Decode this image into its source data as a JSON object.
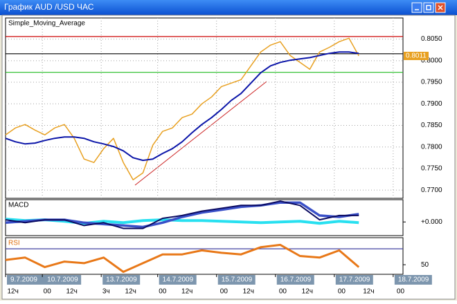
{
  "window": {
    "title": "График AUD /USD  ЧАС"
  },
  "chart_data": [
    {
      "type": "line",
      "title": "Simple_Moving_Average",
      "title_color": "#000000",
      "grid": true,
      "xlim": [
        0,
        162
      ],
      "ylim": [
        0.7681,
        0.8099
      ],
      "yticks": [
        {
          "value": 0.77,
          "label": "0.7700"
        },
        {
          "value": 0.775,
          "label": "0.7750"
        },
        {
          "value": 0.78,
          "label": "0.7800"
        },
        {
          "value": 0.785,
          "label": "0.7850"
        },
        {
          "value": 0.79,
          "label": "0.7900"
        },
        {
          "value": 0.795,
          "label": "0.7950"
        },
        {
          "value": 0.8,
          "label": "0.8000"
        },
        {
          "value": 0.805,
          "label": "0.8050"
        }
      ],
      "hlines": [
        {
          "value": 0.8056,
          "color": "#cc0000"
        },
        {
          "value": 0.8016,
          "color": "#000000"
        },
        {
          "value": 0.7973,
          "color": "#22bb22"
        }
      ],
      "x": [
        0,
        4,
        8,
        12,
        16,
        20,
        24,
        28,
        32,
        36,
        40,
        44,
        48,
        52,
        56,
        60,
        64,
        68,
        72,
        76,
        80,
        84,
        88,
        92,
        96,
        100,
        104,
        108,
        112,
        116,
        120,
        124,
        128,
        132,
        136,
        140,
        144
      ],
      "series": [
        {
          "color": "#e8a020",
          "width": 1.5,
          "last_label": true,
          "values": [
            0.7828,
            0.7844,
            0.7852,
            0.7839,
            0.7828,
            0.7844,
            0.7852,
            0.782,
            0.7772,
            0.7764,
            0.7796,
            0.782,
            0.7764,
            0.7724,
            0.774,
            0.7804,
            0.7836,
            0.7844,
            0.7868,
            0.7876,
            0.79,
            0.7916,
            0.794,
            0.7948,
            0.7956,
            0.7988,
            0.802,
            0.8036,
            0.8044,
            0.8012,
            0.7996,
            0.798,
            0.802,
            0.8031,
            0.8044,
            0.8052,
            0.8011
          ]
        },
        {
          "color": "#0a14a8",
          "width": 2,
          "values": [
            0.782,
            0.7812,
            0.7807,
            0.7809,
            0.7815,
            0.782,
            0.7823,
            0.7823,
            0.782,
            0.7812,
            0.7807,
            0.7801,
            0.7791,
            0.7775,
            0.7769,
            0.7772,
            0.7785,
            0.7796,
            0.7812,
            0.7833,
            0.7852,
            0.7868,
            0.7887,
            0.7908,
            0.7924,
            0.7948,
            0.7972,
            0.7988,
            0.7996,
            0.8001,
            0.8004,
            0.8007,
            0.8012,
            0.8017,
            0.802,
            0.802,
            0.8017
          ]
        }
      ]
    },
    {
      "type": "line",
      "title": "MACD",
      "title_color": "#000000",
      "grid": false,
      "xlim": [
        0,
        162
      ],
      "ylim": [
        -0.0019,
        0.0031
      ],
      "yticks": [
        {
          "value": 0,
          "label": "+0.000"
        }
      ],
      "x": [
        0,
        8,
        16,
        24,
        32,
        40,
        48,
        56,
        64,
        72,
        80,
        88,
        96,
        104,
        112,
        120,
        128,
        136,
        144
      ],
      "series": [
        {
          "color": "#28e0f0",
          "width": 4,
          "values": [
            0.0004,
            0.0002,
            0.0003,
            0.0001,
            -0.0002,
            0.0001,
            -0.0001,
            0.0002,
            0.0003,
            0.0002,
            0.0002,
            0.0001,
            0.0,
            -0.0001,
            0.0,
            0.0001,
            -0.0002,
            0.0001,
            -0.0001
          ]
        },
        {
          "color": "#3a50c8",
          "width": 3.5,
          "values": [
            -0.0001,
            0.0001,
            0.0003,
            0.0003,
            -0.0001,
            -0.0003,
            -0.0005,
            -0.0007,
            -0.0001,
            0.0007,
            0.0013,
            0.0017,
            0.0021,
            0.0023,
            0.0027,
            0.0027,
            0.0009,
            0.0007,
            0.0011
          ]
        },
        {
          "color": "#0a0a60",
          "width": 2,
          "values": [
            0.0003,
            -0.0001,
            0.0003,
            0.0003,
            -0.0005,
            -0.0001,
            -0.0009,
            -0.0009,
            0.0005,
            0.0009,
            0.0015,
            0.0019,
            0.0023,
            0.0023,
            0.0029,
            0.0023,
            0.0003,
            0.0009,
            0.0009
          ]
        }
      ]
    },
    {
      "type": "line",
      "title": "RSI",
      "title_color": "#e07010",
      "grid": false,
      "xlim": [
        0,
        162
      ],
      "ylim": [
        38,
        84
      ],
      "yticks": [
        50
      ],
      "hlines": [
        {
          "value": 70,
          "color": "#4040a0"
        }
      ],
      "x": [
        0,
        8,
        16,
        24,
        32,
        40,
        48,
        56,
        64,
        72,
        80,
        88,
        96,
        104,
        112,
        120,
        128,
        136,
        144
      ],
      "series": [
        {
          "color": "#e87818",
          "width": 3,
          "values": [
            56,
            59,
            47,
            54,
            52,
            59,
            41,
            52,
            63,
            63,
            68,
            65,
            63,
            72,
            75,
            61,
            59,
            68,
            47
          ]
        }
      ]
    }
  ],
  "time_axis": {
    "xlim": [
      0,
      162
    ],
    "date_ticks": [
      {
        "value": 0,
        "label": "9.7.2009"
      },
      {
        "value": 15,
        "label": "10.7.2009"
      },
      {
        "value": 39,
        "label": "13.7.2009"
      },
      {
        "value": 62,
        "label": "14.7.2009"
      },
      {
        "value": 86,
        "label": "15.7.2009"
      },
      {
        "value": 110,
        "label": "16.7.2009"
      },
      {
        "value": 134,
        "label": "17.7.2009"
      },
      {
        "value": 158,
        "label": "18.7.2009"
      }
    ],
    "hour_ticks": [
      {
        "value": 3,
        "label": "12ч"
      },
      {
        "value": 17,
        "label": "00"
      },
      {
        "value": 27,
        "label": "12ч"
      },
      {
        "value": 41,
        "label": "3ч"
      },
      {
        "value": 51,
        "label": "12ч"
      },
      {
        "value": 64,
        "label": "00"
      },
      {
        "value": 74,
        "label": "12ч"
      },
      {
        "value": 89,
        "label": "00"
      },
      {
        "value": 99,
        "label": "12ч"
      },
      {
        "value": 113,
        "label": "00"
      },
      {
        "value": 123,
        "label": "12ч"
      },
      {
        "value": 137,
        "label": "00"
      },
      {
        "value": 148,
        "label": "12ч"
      },
      {
        "value": 161,
        "label": "00"
      }
    ]
  }
}
